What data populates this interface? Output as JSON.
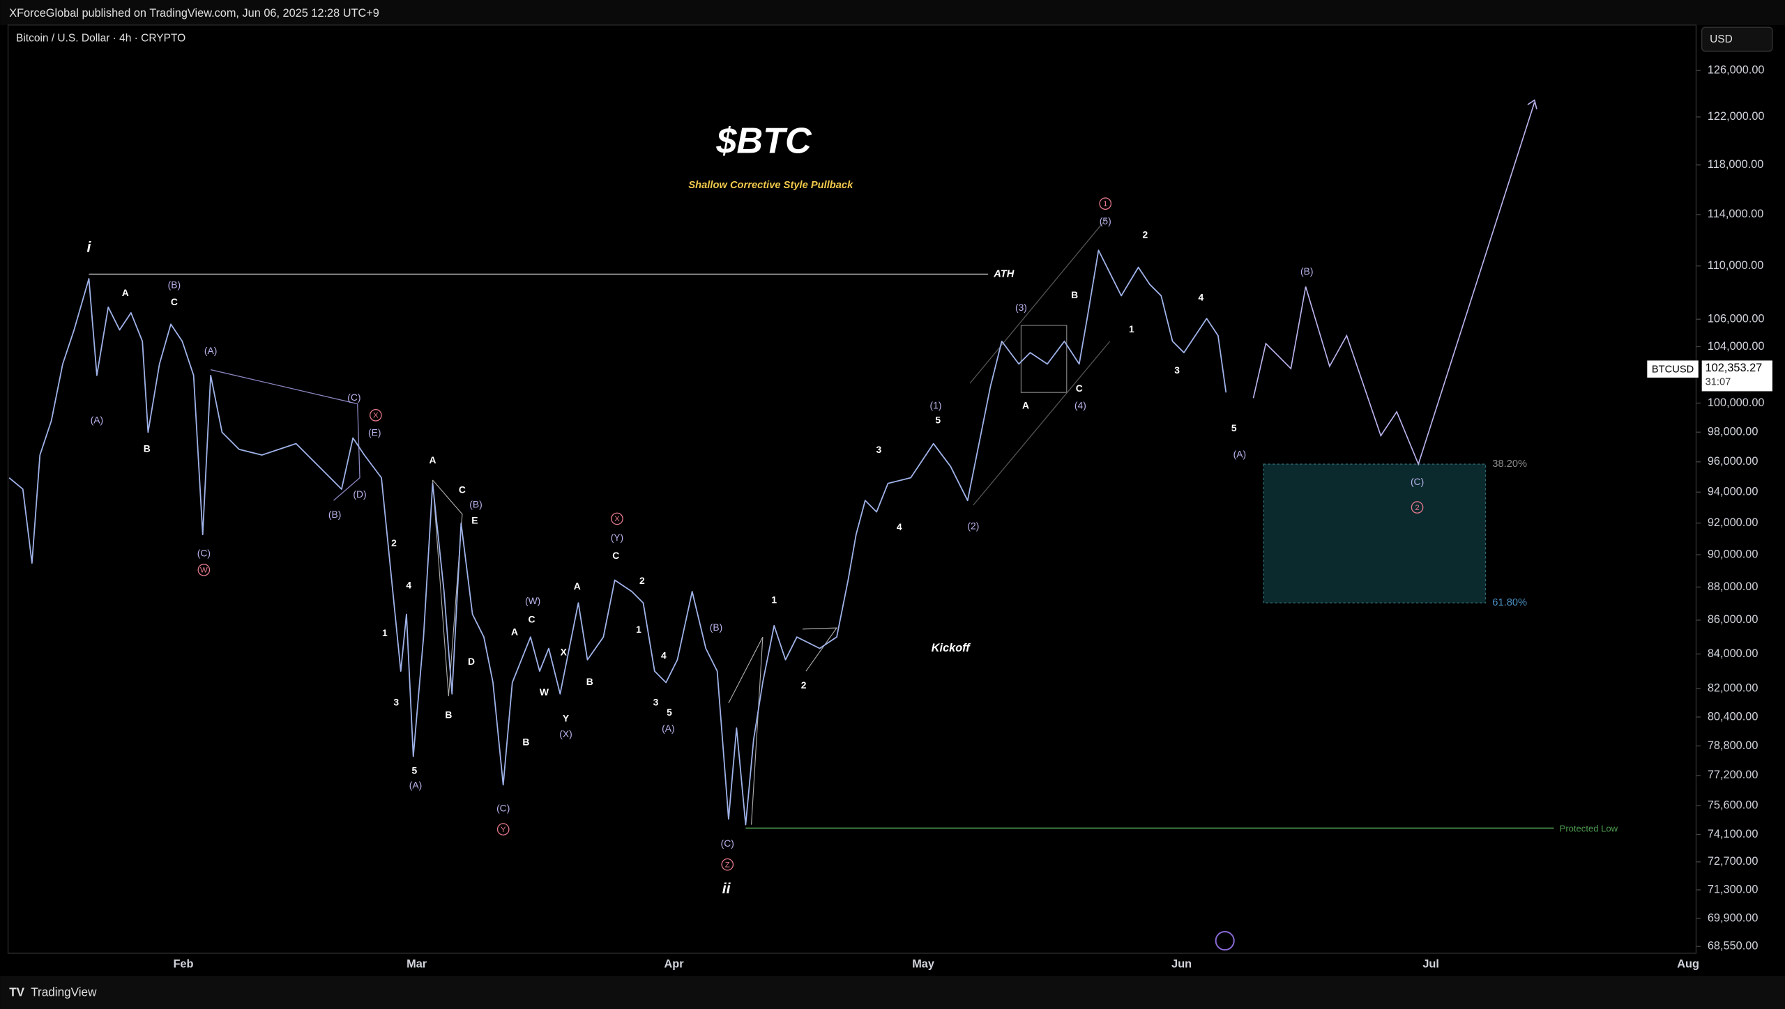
{
  "header": {
    "published": "XForceGlobal published on TradingView.com, Jun 06, 2025 12:28 UTC+9",
    "symbol": "Bitcoin / U.S. Dollar · 4h · CRYPTO",
    "currency": "USD"
  },
  "annotations": {
    "title": "$BTC",
    "subtitle": "Shallow Corrective Style Pullback",
    "wave_i": "i",
    "wave_ii": "ii",
    "ath": "ATH",
    "kickoff": "Kickoff",
    "protected_low": "Protected Low",
    "fib_382": "38.20%",
    "fib_618": "61.80%"
  },
  "labels": {
    "white": [
      "A",
      "C",
      "B",
      "A",
      "C",
      "E",
      "2",
      "4",
      "1",
      "3",
      "D",
      "B",
      "5",
      "A",
      "C",
      "B",
      "W",
      "X",
      "Y",
      "B",
      "A",
      "C",
      "2",
      "1",
      "4",
      "3",
      "5",
      "1",
      "2",
      "3",
      "4",
      "5",
      "A",
      "B",
      "C",
      "1",
      "2",
      "3",
      "4",
      "5"
    ],
    "purple": [
      "(B)",
      "(A)",
      "(A)",
      "(C)",
      "(E)",
      "(D)",
      "(B)",
      "(C)",
      "(B)",
      "(A)",
      "(C)",
      "(W)",
      "(Y)",
      "(X)",
      "(A)",
      "(B)",
      "(C)",
      "(1)",
      "(2)",
      "(3)",
      "(4)",
      "(5)",
      "(B)",
      "(A)",
      "(C)"
    ],
    "circled": [
      "X",
      "W",
      "X",
      "Y",
      "Z",
      "1",
      "2"
    ]
  },
  "price_axis": {
    "log": true,
    "lim": [
      68226,
      130050
    ],
    "ticks": [
      {
        "value": 126000,
        "label": "126,000.00"
      },
      {
        "value": 122000,
        "label": "122,000.00"
      },
      {
        "value": 118000,
        "label": "118,000.00"
      },
      {
        "value": 114000,
        "label": "114,000.00"
      },
      {
        "value": 110000,
        "label": "110,000.00"
      },
      {
        "value": 106000,
        "label": "106,000.00"
      },
      {
        "value": 104000,
        "label": "104,000.00"
      },
      {
        "value": 100000,
        "label": "100,000.00"
      },
      {
        "value": 98000,
        "label": "98,000.00"
      },
      {
        "value": 96000,
        "label": "96,000.00"
      },
      {
        "value": 94000,
        "label": "94,000.00"
      },
      {
        "value": 92000,
        "label": "92,000.00"
      },
      {
        "value": 90000,
        "label": "90,000.00"
      },
      {
        "value": 88000,
        "label": "88,000.00"
      },
      {
        "value": 86000,
        "label": "86,000.00"
      },
      {
        "value": 84000,
        "label": "84,000.00"
      },
      {
        "value": 82000,
        "label": "82,000.00"
      },
      {
        "value": 80400,
        "label": "80,400.00"
      },
      {
        "value": 78800,
        "label": "78,800.00"
      },
      {
        "value": 77200,
        "label": "77,200.00"
      },
      {
        "value": 75600,
        "label": "75,600.00"
      },
      {
        "value": 74100,
        "label": "74,100.00"
      },
      {
        "value": 72700,
        "label": "72,700.00"
      },
      {
        "value": 71300,
        "label": "71,300.00"
      },
      {
        "value": 69900,
        "label": "69,900.00"
      },
      {
        "value": 68550,
        "label": "68,550.00"
      }
    ],
    "last_price": {
      "symbol": "BTCUSD",
      "value": 102353.27,
      "label": "102,353.27",
      "countdown": "31:07"
    }
  },
  "time_axis": {
    "months": [
      "Feb",
      "Mar",
      "Apr",
      "May",
      "Jun",
      "Jul",
      "Aug"
    ]
  },
  "footer": {
    "brand": "TradingView"
  }
}
